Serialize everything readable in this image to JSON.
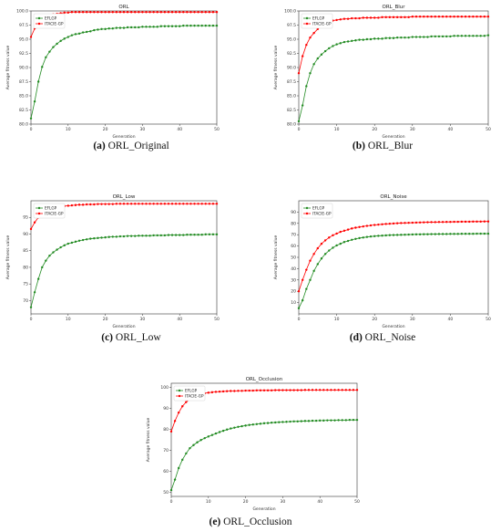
{
  "figure": {
    "panels_count": 5
  },
  "chart_data": [
    {
      "type": "line",
      "title": "ORL",
      "caption_tag": "(a)",
      "caption_text": "ORL_Original",
      "xlabel": "Generation",
      "ylabel": "Average fitness value",
      "xlim": [
        0,
        50
      ],
      "ylim": [
        80,
        100
      ],
      "xticks": [
        0,
        10,
        20,
        30,
        40,
        50
      ],
      "yticks": [
        80.0,
        82.5,
        85.0,
        87.5,
        90.0,
        92.5,
        95.0,
        97.5,
        100.0
      ],
      "ytick_labels": [
        "80.0",
        "82.5",
        "85.0",
        "87.5",
        "90.0",
        "92.5",
        "95.0",
        "97.5",
        "100.0"
      ],
      "legend": "top-left",
      "grid": false,
      "series": [
        {
          "name": "EFLGP",
          "color": "#228b22",
          "values": [
            81.0,
            84.0,
            87.5,
            90.1,
            91.8,
            92.8,
            93.6,
            94.2,
            94.7,
            95.1,
            95.4,
            95.7,
            95.9,
            96.0,
            96.2,
            96.3,
            96.4,
            96.6,
            96.7,
            96.8,
            96.8,
            96.9,
            96.9,
            97.0,
            97.0,
            97.0,
            97.1,
            97.1,
            97.1,
            97.1,
            97.2,
            97.2,
            97.2,
            97.2,
            97.2,
            97.3,
            97.3,
            97.3,
            97.3,
            97.3,
            97.3,
            97.4,
            97.4,
            97.4,
            97.4,
            97.4,
            97.4,
            97.4,
            97.4,
            97.4,
            97.4
          ]
        },
        {
          "name": "ITACIE-GP",
          "color": "#ff0000",
          "values": [
            95.4,
            96.9,
            97.9,
            98.5,
            98.9,
            99.2,
            99.4,
            99.5,
            99.6,
            99.7,
            99.7,
            99.8,
            99.8,
            99.8,
            99.8,
            99.8,
            99.8,
            99.8,
            99.8,
            99.8,
            99.8,
            99.8,
            99.8,
            99.8,
            99.8,
            99.8,
            99.8,
            99.8,
            99.8,
            99.8,
            99.8,
            99.8,
            99.8,
            99.8,
            99.8,
            99.8,
            99.8,
            99.8,
            99.8,
            99.8,
            99.8,
            99.8,
            99.8,
            99.8,
            99.8,
            99.8,
            99.8,
            99.8,
            99.8,
            99.8,
            99.8
          ]
        }
      ]
    },
    {
      "type": "line",
      "title": "ORL_Blur",
      "caption_tag": "(b)",
      "caption_text": "ORL_Blur",
      "xlabel": "Generation",
      "ylabel": "Average fitness value",
      "xlim": [
        0,
        50
      ],
      "ylim": [
        80,
        100
      ],
      "xticks": [
        0,
        10,
        20,
        30,
        40,
        50
      ],
      "yticks": [
        80.0,
        82.5,
        85.0,
        87.5,
        90.0,
        92.5,
        95.0,
        97.5,
        100.0
      ],
      "ytick_labels": [
        "80.0",
        "82.5",
        "85.0",
        "87.5",
        "90.0",
        "92.5",
        "95.0",
        "97.5",
        "100.0"
      ],
      "legend": "top-left",
      "grid": false,
      "series": [
        {
          "name": "EFLGP",
          "color": "#228b22",
          "values": [
            80.5,
            83.3,
            86.7,
            89.0,
            90.6,
            91.6,
            92.3,
            92.9,
            93.4,
            93.8,
            94.1,
            94.3,
            94.5,
            94.6,
            94.7,
            94.8,
            94.9,
            94.9,
            95.0,
            95.0,
            95.1,
            95.1,
            95.1,
            95.2,
            95.2,
            95.2,
            95.3,
            95.3,
            95.3,
            95.3,
            95.4,
            95.4,
            95.4,
            95.4,
            95.4,
            95.5,
            95.5,
            95.5,
            95.5,
            95.5,
            95.5,
            95.6,
            95.6,
            95.6,
            95.6,
            95.6,
            95.6,
            95.6,
            95.6,
            95.6,
            95.7
          ]
        },
        {
          "name": "ITACIE-GP",
          "color": "#ff0000",
          "values": [
            89.0,
            92.0,
            94.0,
            95.3,
            96.1,
            96.8,
            97.3,
            97.7,
            98.0,
            98.3,
            98.4,
            98.5,
            98.6,
            98.6,
            98.7,
            98.7,
            98.7,
            98.8,
            98.8,
            98.8,
            98.8,
            98.8,
            98.9,
            98.9,
            98.9,
            98.9,
            98.9,
            98.9,
            98.9,
            98.9,
            99.0,
            99.0,
            99.0,
            99.0,
            99.0,
            99.0,
            99.0,
            99.0,
            99.0,
            99.0,
            99.0,
            99.0,
            99.0,
            99.0,
            99.0,
            99.0,
            99.0,
            99.0,
            99.0,
            99.0,
            99.0
          ]
        }
      ]
    },
    {
      "type": "line",
      "title": "ORL_Low",
      "caption_tag": "(c)",
      "caption_text": "ORL_Low",
      "xlabel": "Generation",
      "ylabel": "Average fitness value",
      "xlim": [
        0,
        50
      ],
      "ylim": [
        66,
        100
      ],
      "xticks": [
        0,
        10,
        20,
        30,
        40,
        50
      ],
      "yticks": [
        70,
        75,
        80,
        85,
        90,
        95
      ],
      "ytick_labels": [
        "70",
        "75",
        "80",
        "85",
        "90",
        "95"
      ],
      "legend": "top-left",
      "grid": false,
      "series": [
        {
          "name": "EFLGP",
          "color": "#228b22",
          "values": [
            68.0,
            72.5,
            76.5,
            80.0,
            82.0,
            83.5,
            84.5,
            85.3,
            86.0,
            86.6,
            87.1,
            87.4,
            87.7,
            88.0,
            88.2,
            88.4,
            88.6,
            88.7,
            88.8,
            88.9,
            89.0,
            89.1,
            89.2,
            89.2,
            89.3,
            89.3,
            89.4,
            89.4,
            89.4,
            89.5,
            89.5,
            89.5,
            89.5,
            89.6,
            89.6,
            89.6,
            89.6,
            89.7,
            89.7,
            89.7,
            89.7,
            89.7,
            89.8,
            89.8,
            89.8,
            89.8,
            89.8,
            89.9,
            89.9,
            89.9,
            89.9
          ]
        },
        {
          "name": "ITACIE-GP",
          "color": "#ff0000",
          "values": [
            91.5,
            93.5,
            95.0,
            96.0,
            96.8,
            97.3,
            97.7,
            98.0,
            98.2,
            98.4,
            98.5,
            98.6,
            98.7,
            98.8,
            98.8,
            98.9,
            98.9,
            98.9,
            99.0,
            99.0,
            99.0,
            99.0,
            99.0,
            99.1,
            99.1,
            99.1,
            99.1,
            99.1,
            99.1,
            99.1,
            99.1,
            99.1,
            99.1,
            99.1,
            99.1,
            99.1,
            99.1,
            99.1,
            99.1,
            99.1,
            99.1,
            99.1,
            99.1,
            99.1,
            99.1,
            99.1,
            99.1,
            99.1,
            99.1,
            99.1,
            99.1
          ]
        }
      ]
    },
    {
      "type": "line",
      "title": "ORL_Noise",
      "caption_tag": "(d)",
      "caption_text": "ORL_Noise",
      "xlabel": "Generation",
      "ylabel": "Average fitness value",
      "xlim": [
        0,
        50
      ],
      "ylim": [
        0,
        100
      ],
      "xticks": [
        0,
        10,
        20,
        30,
        40,
        50
      ],
      "yticks": [
        10,
        20,
        30,
        40,
        50,
        60,
        70,
        80,
        90
      ],
      "ytick_labels": [
        "10",
        "20",
        "30",
        "40",
        "50",
        "60",
        "70",
        "80",
        "90"
      ],
      "legend": "top-left",
      "grid": false,
      "series": [
        {
          "name": "EFLGP",
          "color": "#228b22",
          "values": [
            5.0,
            12.0,
            22.0,
            30.0,
            38.0,
            44.0,
            49.0,
            53.0,
            56.0,
            58.5,
            60.5,
            62.0,
            63.5,
            64.5,
            65.5,
            66.3,
            67.0,
            67.5,
            68.0,
            68.4,
            68.7,
            69.0,
            69.2,
            69.4,
            69.6,
            69.7,
            69.8,
            69.9,
            70.0,
            70.1,
            70.2,
            70.3,
            70.3,
            70.4,
            70.4,
            70.5,
            70.5,
            70.6,
            70.6,
            70.6,
            70.7,
            70.7,
            70.7,
            70.8,
            70.8,
            70.8,
            70.8,
            70.9,
            70.9,
            70.9,
            70.9
          ]
        },
        {
          "name": "ITACIE-GP",
          "color": "#ff0000",
          "values": [
            20.0,
            30.0,
            39.0,
            47.0,
            53.0,
            58.0,
            62.0,
            65.0,
            67.5,
            69.5,
            71.0,
            72.5,
            73.5,
            74.5,
            75.5,
            76.2,
            76.8,
            77.3,
            77.8,
            78.2,
            78.6,
            78.9,
            79.2,
            79.5,
            79.7,
            79.9,
            80.1,
            80.3,
            80.4,
            80.5,
            80.6,
            80.7,
            80.8,
            80.9,
            81.0,
            81.1,
            81.1,
            81.2,
            81.2,
            81.3,
            81.3,
            81.4,
            81.4,
            81.5,
            81.5,
            81.5,
            81.6,
            81.6,
            81.6,
            81.7,
            81.7
          ]
        }
      ]
    },
    {
      "type": "line",
      "title": "ORL_Occlusion",
      "caption_tag": "(e)",
      "caption_text": "ORL_Occlusion",
      "xlabel": "Generation",
      "ylabel": "Average fitness value",
      "xlim": [
        0,
        50
      ],
      "ylim": [
        48,
        102
      ],
      "xticks": [
        0,
        10,
        20,
        30,
        40,
        50
      ],
      "yticks": [
        50,
        60,
        70,
        80,
        90,
        100
      ],
      "ytick_labels": [
        "50",
        "60",
        "70",
        "80",
        "90",
        "100"
      ],
      "legend": "top-left",
      "grid": false,
      "series": [
        {
          "name": "EFLGP",
          "color": "#228b22",
          "values": [
            51.0,
            56.0,
            61.5,
            65.5,
            68.5,
            71.0,
            72.5,
            73.8,
            74.9,
            75.8,
            76.6,
            77.3,
            78.0,
            78.7,
            79.3,
            79.9,
            80.4,
            80.8,
            81.2,
            81.5,
            81.8,
            82.1,
            82.3,
            82.5,
            82.7,
            82.9,
            83.0,
            83.2,
            83.3,
            83.4,
            83.5,
            83.6,
            83.7,
            83.8,
            83.8,
            83.9,
            84.0,
            84.0,
            84.1,
            84.1,
            84.2,
            84.2,
            84.3,
            84.3,
            84.3,
            84.4,
            84.4,
            84.4,
            84.5,
            84.5,
            84.5
          ]
        },
        {
          "name": "ITACIE-GP",
          "color": "#ff0000",
          "values": [
            79.0,
            84.0,
            88.0,
            91.0,
            93.0,
            94.5,
            95.5,
            96.2,
            96.8,
            97.2,
            97.5,
            97.7,
            97.9,
            98.0,
            98.1,
            98.2,
            98.3,
            98.3,
            98.4,
            98.4,
            98.5,
            98.5,
            98.5,
            98.6,
            98.6,
            98.6,
            98.6,
            98.6,
            98.7,
            98.7,
            98.7,
            98.7,
            98.7,
            98.7,
            98.7,
            98.7,
            98.8,
            98.8,
            98.8,
            98.8,
            98.8,
            98.8,
            98.8,
            98.8,
            98.8,
            98.8,
            98.8,
            98.8,
            98.8,
            98.8,
            98.8
          ]
        }
      ]
    }
  ]
}
